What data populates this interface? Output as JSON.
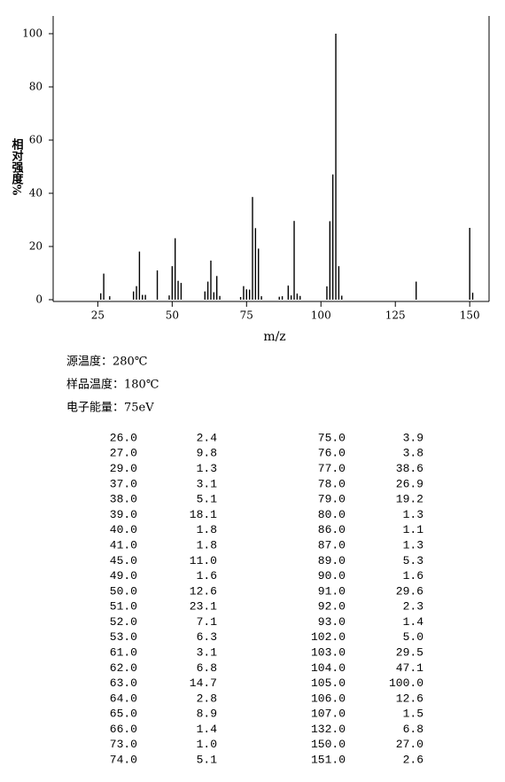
{
  "chart_data": {
    "type": "bar",
    "x_label": "m/z",
    "y_label": "相对强度%",
    "x": [
      26,
      27,
      29,
      37,
      38,
      39,
      40,
      41,
      45,
      49,
      50,
      51,
      52,
      53,
      61,
      62,
      63,
      64,
      65,
      66,
      73,
      74,
      75,
      76,
      77,
      78,
      79,
      80,
      86,
      87,
      89,
      90,
      91,
      92,
      93,
      102,
      103,
      104,
      105,
      106,
      107,
      132,
      150,
      151
    ],
    "values": [
      2.4,
      9.8,
      1.3,
      3.1,
      5.1,
      18.1,
      1.8,
      1.8,
      11.0,
      1.6,
      12.6,
      23.1,
      7.1,
      6.3,
      3.1,
      6.8,
      14.7,
      2.8,
      8.9,
      1.4,
      1.0,
      5.1,
      3.9,
      3.8,
      38.6,
      26.9,
      19.2,
      1.3,
      1.1,
      1.3,
      5.3,
      1.6,
      29.6,
      2.3,
      1.4,
      5.0,
      29.5,
      47.1,
      100.0,
      12.6,
      1.5,
      6.8,
      27.0,
      2.6
    ],
    "color": "#000000",
    "xlim": [
      10,
      156.5
    ],
    "xticks": [
      25,
      50,
      75,
      100,
      125,
      150
    ],
    "ylim": [
      0,
      106
    ],
    "yticks": [
      0,
      20,
      40,
      60,
      80,
      100
    ]
  },
  "conditions": [
    "源温度：280℃",
    "样品温度：180℃",
    "电子能量：75eV"
  ],
  "table": {
    "rows": [
      [
        "26.0",
        "2.4",
        "75.0",
        "3.9"
      ],
      [
        "27.0",
        "9.8",
        "76.0",
        "3.8"
      ],
      [
        "29.0",
        "1.3",
        "77.0",
        "38.6"
      ],
      [
        "37.0",
        "3.1",
        "78.0",
        "26.9"
      ],
      [
        "38.0",
        "5.1",
        "79.0",
        "19.2"
      ],
      [
        "39.0",
        "18.1",
        "80.0",
        "1.3"
      ],
      [
        "40.0",
        "1.8",
        "86.0",
        "1.1"
      ],
      [
        "41.0",
        "1.8",
        "87.0",
        "1.3"
      ],
      [
        "45.0",
        "11.0",
        "89.0",
        "5.3"
      ],
      [
        "49.0",
        "1.6",
        "90.0",
        "1.6"
      ],
      [
        "50.0",
        "12.6",
        "91.0",
        "29.6"
      ],
      [
        "51.0",
        "23.1",
        "92.0",
        "2.3"
      ],
      [
        "52.0",
        "7.1",
        "93.0",
        "1.4"
      ],
      [
        "53.0",
        "6.3",
        "102.0",
        "5.0"
      ],
      [
        "61.0",
        "3.1",
        "103.0",
        "29.5"
      ],
      [
        "62.0",
        "6.8",
        "104.0",
        "47.1"
      ],
      [
        "63.0",
        "14.7",
        "105.0",
        "100.0"
      ],
      [
        "64.0",
        "2.8",
        "106.0",
        "12.6"
      ],
      [
        "65.0",
        "8.9",
        "107.0",
        "1.5"
      ],
      [
        "66.0",
        "1.4",
        "132.0",
        "6.8"
      ],
      [
        "73.0",
        "1.0",
        "150.0",
        "27.0"
      ],
      [
        "74.0",
        "5.1",
        "151.0",
        "2.6"
      ]
    ]
  }
}
